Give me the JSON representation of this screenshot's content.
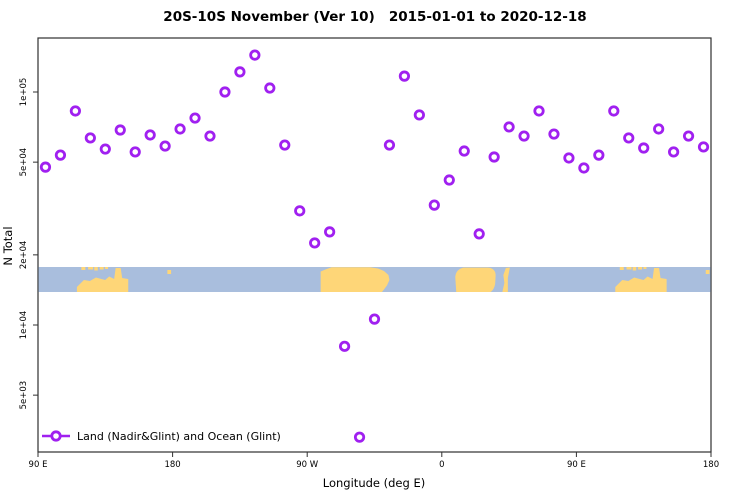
{
  "title": "20S-10S November (Ver 10)   2015-01-01 to 2020-12-18",
  "legend": {
    "label": "Land (Nadir&Glint) and Ocean (Glint)"
  },
  "colors": {
    "point": "#A020F0",
    "ocean": "#a9bedd",
    "land": "#fed678",
    "axis": "#303030",
    "text": "#000000",
    "background": "#ffffff"
  },
  "map_band": {
    "description": "world coastline strip for latitude band 20S-10S drawn across the longitude axis",
    "landmasses": [
      {
        "name": "australia-north",
        "shape": "australia",
        "lon": [
          114,
          151
        ]
      },
      {
        "name": "indonesia-timor-islands",
        "shape": "top-dots",
        "lon": [
          119,
          137
        ]
      },
      {
        "name": "fiji-islands",
        "shape": "mid-dot",
        "lon": [
          176.5,
          179
        ]
      },
      {
        "name": "south-america",
        "shape": "block-notched",
        "lon": [
          279,
          326
        ]
      },
      {
        "name": "africa-south",
        "shape": "rounded-block",
        "lon": [
          369,
          397
        ]
      },
      {
        "name": "madagascar",
        "shape": "slant-strip",
        "lon": [
          399.5,
          405.5
        ]
      },
      {
        "name": "australia-north-duplicate",
        "shape": "australia",
        "lon": [
          474,
          511
        ]
      },
      {
        "name": "indonesia-timor-islands-duplicate",
        "shape": "top-dots",
        "lon": [
          479,
          497
        ]
      },
      {
        "name": "fiji-islands-duplicate",
        "shape": "mid-dot",
        "lon": [
          536.5,
          539
        ]
      }
    ]
  },
  "chart_data": {
    "type": "scatter",
    "title": "20S-10S November (Ver 10)   2015-01-01 to 2020-12-18",
    "xlabel": "Longitude (deg E)",
    "ylabel": "N Total",
    "y_scale": "log",
    "x_range": [
      90,
      540
    ],
    "x_range_note": "axis spans 450 deg: 90E east through 180, 90W, 0, 90E to 180; the 90E-180 sector is plotted twice (wrap-around)",
    "x_ticks": [
      {
        "lon": 90,
        "label": "90 E"
      },
      {
        "lon": 180,
        "label": "180"
      },
      {
        "lon": 270,
        "label": "90 W"
      },
      {
        "lon": 360,
        "label": "0"
      },
      {
        "lon": 450,
        "label": "90 E"
      },
      {
        "lon": 540,
        "label": "180"
      }
    ],
    "y_ticks": [
      {
        "value": 100000,
        "label": "1e+05"
      },
      {
        "value": 50000,
        "label": "5e+04"
      },
      {
        "value": 20000,
        "label": "2e+04"
      },
      {
        "value": 10000,
        "label": "1e+04"
      },
      {
        "value": 5000,
        "label": "5e+03"
      }
    ],
    "grid": false,
    "legend_position": "bottom-left",
    "series": [
      {
        "name": "Land (Nadir&Glint) and Ocean (Glint)",
        "marker": "open-circle",
        "color": "#A020F0",
        "points_format": [
          "longitude_deg_plotted",
          "n_total"
        ],
        "points": [
          [
            95,
            47600
          ],
          [
            105,
            53600
          ],
          [
            115,
            82900
          ],
          [
            125,
            63500
          ],
          [
            135,
            56900
          ],
          [
            145,
            68700
          ],
          [
            155,
            55300
          ],
          [
            165,
            65400
          ],
          [
            175,
            58600
          ],
          [
            185,
            69400
          ],
          [
            195,
            77300
          ],
          [
            205,
            64700
          ],
          [
            215,
            100000
          ],
          [
            225,
            122000
          ],
          [
            235,
            144000
          ],
          [
            245,
            104000
          ],
          [
            255,
            59200
          ],
          [
            265,
            30900
          ],
          [
            275,
            22500
          ],
          [
            285,
            25100
          ],
          [
            295,
            8100
          ],
          [
            305,
            3300
          ],
          [
            315,
            10600
          ],
          [
            325,
            59200
          ],
          [
            335,
            117000
          ],
          [
            345,
            79700
          ],
          [
            355,
            32700
          ],
          [
            365,
            41900
          ],
          [
            375,
            55800
          ],
          [
            385,
            24600
          ],
          [
            395,
            52600
          ],
          [
            405,
            70800
          ],
          [
            415,
            64700
          ],
          [
            425,
            82900
          ],
          [
            435,
            66000
          ],
          [
            445,
            52100
          ],
          [
            455,
            47200
          ],
          [
            465,
            53600
          ],
          [
            475,
            82900
          ],
          [
            485,
            63500
          ],
          [
            495,
            57500
          ],
          [
            505,
            69400
          ],
          [
            515,
            55300
          ],
          [
            525,
            64700
          ],
          [
            535,
            58100
          ]
        ]
      }
    ]
  }
}
